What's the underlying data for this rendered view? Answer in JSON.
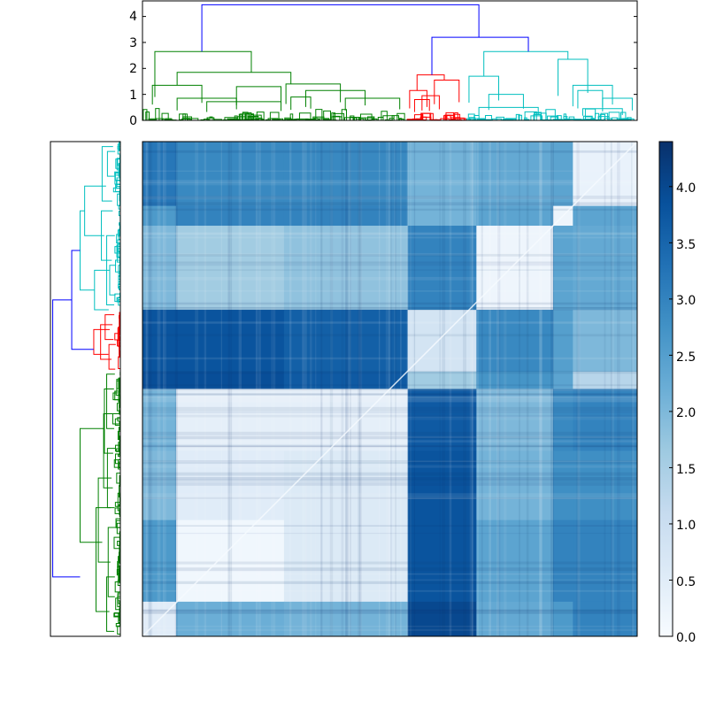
{
  "chart_data": [
    {
      "type": "dendrogram",
      "orientation": "top",
      "yticks": [
        "0",
        "1",
        "2",
        "3",
        "4"
      ],
      "ylim": [
        0,
        4.6
      ],
      "clusters": [
        {
          "name": "green",
          "color": "#008000",
          "leaf_range": [
            0,
            0.535
          ]
        },
        {
          "name": "red",
          "color": "#ff0000",
          "leaf_range": [
            0.535,
            0.655
          ]
        },
        {
          "name": "cyan",
          "color": "#00bfbf",
          "leaf_range": [
            0.655,
            1.0
          ]
        }
      ],
      "main_merges": [
        {
          "cluster": "green",
          "height": 2.65
        },
        {
          "cluster": "red",
          "height": 1.75
        },
        {
          "cluster": "cyan",
          "height": 2.65
        },
        {
          "label": "red+cyan",
          "height": 3.2,
          "color": "#0000ff"
        },
        {
          "label": "root",
          "height": 4.45,
          "color": "#0000ff"
        }
      ]
    },
    {
      "type": "heatmap",
      "title": "",
      "xlabel": "",
      "ylabel": "",
      "cmap": "Blues",
      "vmin": 0.0,
      "vmax": 4.4,
      "colorbar_ticks": [
        "0.0",
        "0.5",
        "1.0",
        "1.5",
        "2.0",
        "2.5",
        "3.0",
        "3.5",
        "4.0"
      ],
      "blocks": {
        "x_boundaries": [
          0,
          0.068,
          0.286,
          0.536,
          0.675,
          0.83,
          0.87,
          1.0
        ],
        "y_boundaries": [
          0,
          0.13,
          0.17,
          0.34,
          0.465,
          0.5,
          0.625,
          0.765,
          0.93,
          1.0
        ],
        "values": [
          [
            3.2,
            2.9,
            2.9,
            2.1,
            2.3,
            2.4,
            0.3
          ],
          [
            2.6,
            3.0,
            3.0,
            2.1,
            2.4,
            0.2,
            2.4
          ],
          [
            2.0,
            1.6,
            1.8,
            3.0,
            0.2,
            2.4,
            2.3
          ],
          [
            3.8,
            3.8,
            3.6,
            0.8,
            2.9,
            2.5,
            2.0
          ],
          [
            3.9,
            3.9,
            3.7,
            1.6,
            2.7,
            2.4,
            1.3
          ],
          [
            2.1,
            0.4,
            0.4,
            3.7,
            2.0,
            2.9,
            3.0
          ],
          [
            2.0,
            0.5,
            0.6,
            3.8,
            2.1,
            2.8,
            2.8
          ],
          [
            2.6,
            0.15,
            0.6,
            3.8,
            2.4,
            3.0,
            3.0
          ],
          [
            0.5,
            2.2,
            2.1,
            4.0,
            2.3,
            2.6,
            3.0
          ]
        ],
        "diagonal": 0.0
      }
    },
    {
      "type": "dendrogram",
      "orientation": "left",
      "clusters": [
        {
          "name": "cyan",
          "color": "#00bfbf"
        },
        {
          "name": "red",
          "color": "#ff0000"
        },
        {
          "name": "green",
          "color": "#008000"
        }
      ]
    }
  ]
}
